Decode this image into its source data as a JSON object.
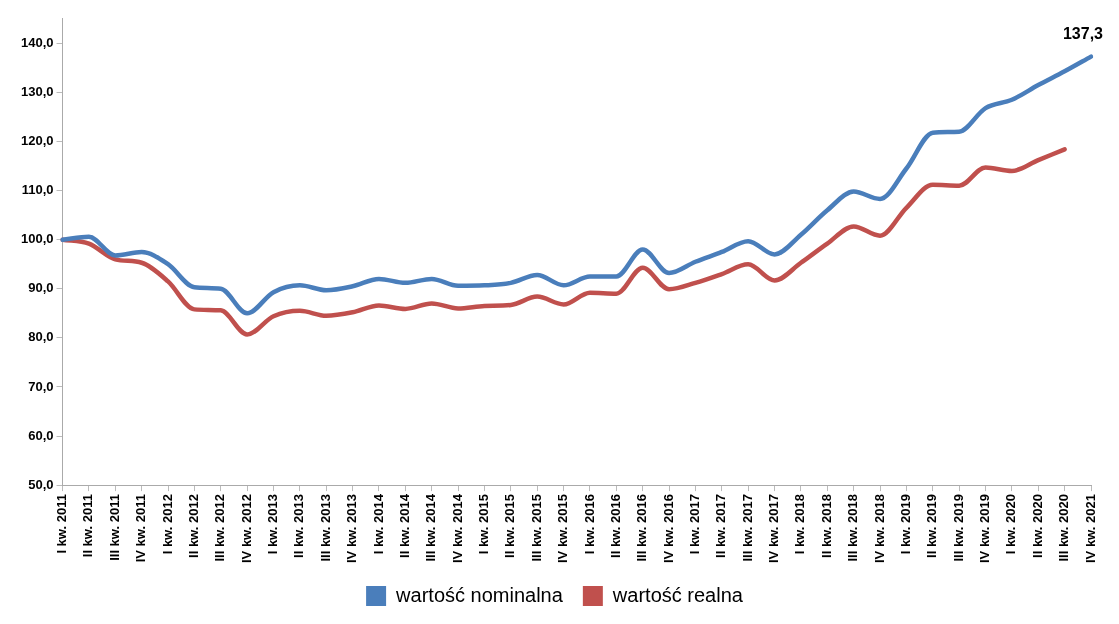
{
  "chart_data": {
    "type": "line",
    "categories": [
      "I kw. 2011",
      "II kw. 2011",
      "III kw. 2011",
      "IV kw. 2011",
      "I kw. 2012",
      "II kw. 2012",
      "III kw. 2012",
      "IV kw. 2012",
      "I kw. 2013",
      "II kw. 2013",
      "III kw. 2013",
      "IV kw. 2013",
      "I kw. 2014",
      "II kw. 2014",
      "III kw. 2014",
      "IV kw. 2014",
      "I kw. 2015",
      "II kw. 2015",
      "III kw. 2015",
      "IV kw. 2015",
      "I kw. 2016",
      "II kw. 2016",
      "III kw. 2016",
      "IV kw. 2016",
      "I kw. 2017",
      "II kw. 2017",
      "III kw. 2017",
      "IV kw. 2017",
      "I kw. 2018",
      "II kw. 2018",
      "III kw. 2018",
      "IV kw. 2018",
      "I kw. 2019",
      "II kw. 2019",
      "III kw. 2019",
      "IV kw. 2019",
      "I kw. 2020",
      "II kw. 2020",
      "III kw. 2020",
      "IV kw. 2021"
    ],
    "series": [
      {
        "name": "wartość nominalna",
        "color": "#4a7ebb",
        "values": [
          100,
          100.6,
          96.8,
          97.5,
          95,
          90.3,
          90,
          85,
          89.3,
          90.7,
          89.7,
          90.5,
          92,
          91.2,
          92,
          90.6,
          90.7,
          91.2,
          92.8,
          90.7,
          92.5,
          92.5,
          98,
          93.2,
          95.5,
          97.5,
          99.7,
          97,
          101,
          106,
          109.8,
          108.3,
          114.5,
          121.8,
          122,
          126.8,
          128.5,
          131.5,
          134.3,
          137.3
        ],
        "value_labels": [
          null,
          null,
          null,
          null,
          null,
          null,
          null,
          null,
          null,
          null,
          null,
          null,
          null,
          null,
          null,
          null,
          null,
          null,
          null,
          null,
          null,
          null,
          null,
          null,
          null,
          null,
          null,
          null,
          null,
          null,
          null,
          null,
          null,
          null,
          null,
          null,
          null,
          null,
          null,
          "137,3"
        ]
      },
      {
        "name": "wartość realna",
        "color": "#c0504d",
        "values": [
          100,
          99.2,
          96,
          95.3,
          91.5,
          85.8,
          85.6,
          80.7,
          84.4,
          85.5,
          84.5,
          85.2,
          86.6,
          85.9,
          87,
          86,
          86.5,
          86.7,
          88.4,
          86.8,
          89.2,
          89,
          94.3,
          89.9,
          91.2,
          93,
          95,
          91.7,
          95.3,
          99.2,
          102.7,
          100.8,
          106.5,
          111.2,
          111,
          114.7,
          114,
          116.2,
          118.4,
          null
        ]
      }
    ],
    "ylim": [
      50,
      145
    ],
    "yticks": [
      {
        "value": 50,
        "label": "50,0"
      },
      {
        "value": 60,
        "label": "60,0"
      },
      {
        "value": 70,
        "label": "70,0"
      },
      {
        "value": 80,
        "label": "80,0"
      },
      {
        "value": 90,
        "label": "90,0"
      },
      {
        "value": 100,
        "label": "100,0"
      },
      {
        "value": 110,
        "label": "110,0"
      },
      {
        "value": 120,
        "label": "120,0"
      },
      {
        "value": 130,
        "label": "130,0"
      },
      {
        "value": 140,
        "label": "140,0"
      }
    ],
    "grid": false,
    "legend": "bottom",
    "marker": "none",
    "line_style": "solid"
  }
}
